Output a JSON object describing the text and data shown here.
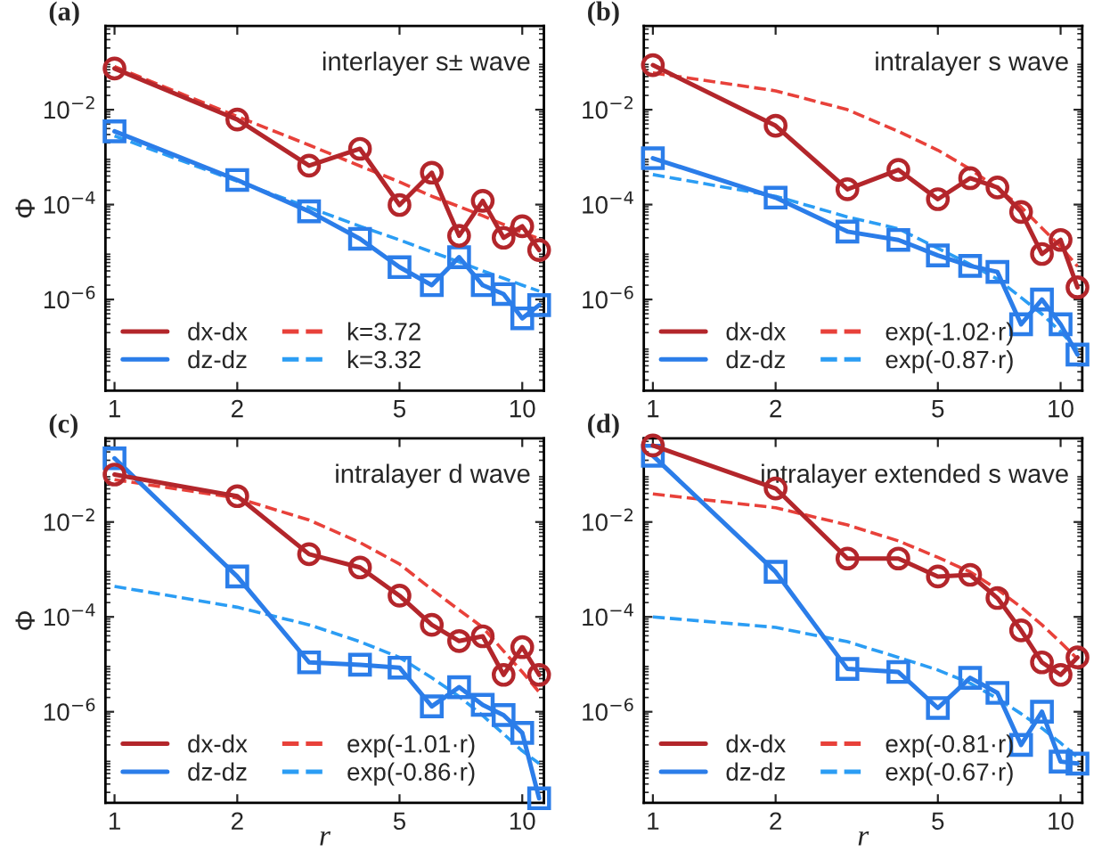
{
  "chart_data": [
    {
      "type": "line",
      "title": "(a)",
      "ylabel": "Φ",
      "annotations": [
        "interlayer s± wave"
      ],
      "log": "xy",
      "xlim": [
        0.95,
        11.3
      ],
      "ylim": [
        1.2e-08,
        0.58
      ],
      "xticks": [
        1,
        2,
        5,
        10
      ],
      "yticks": [
        {
          "value": 0.01,
          "label": "10$^{−2}$"
        },
        {
          "value": 0.0001,
          "label": "10$^{−4}$"
        },
        {
          "value": 1e-06,
          "label": "10$^{−6}$"
        }
      ],
      "grid": false,
      "legend": "bottom left",
      "x": [
        1,
        2,
        3,
        4,
        5,
        6,
        7,
        8,
        9,
        10,
        11
      ],
      "series": [
        {
          "name": "dx-dx",
          "color": "#b3262b",
          "marker": "circle",
          "line_style": "solid",
          "values": [
            0.074,
            0.0062,
            0.00066,
            0.0015,
            9.8e-05,
            0.00047,
            2.2e-05,
            0.00012,
            2e-05,
            3.5e-05,
            1.1e-05
          ]
        },
        {
          "name": "dz-dz",
          "color": "#2b7de9",
          "marker": "square",
          "line_style": "solid",
          "values": [
            0.0035,
            0.00033,
            7.2e-05,
            1.9e-05,
            4.8e-06,
            2e-06,
            7.8e-06,
            2e-06,
            1.3e-06,
            4e-07,
            7.6e-07
          ]
        },
        {
          "name": "k=3.72",
          "color": "#e8413a",
          "marker": "none",
          "line_style": "dashed",
          "values": [
            0.081,
            0.0072,
            0.0018,
            0.00065,
            0.0003,
            0.00015,
            9.1e-05,
            5.8e-05,
            3.8e-05,
            2.6e-05,
            1.9e-05
          ]
        },
        {
          "name": "k=3.32",
          "color": "#2b9df4",
          "marker": "none",
          "line_style": "dashed",
          "values": [
            0.0028,
            0.00031,
            8.7e-05,
            3.5e-05,
            1.8e-05,
            1e-05,
            6.2e-06,
            4e-06,
            2.8e-06,
            2e-06,
            1.5e-06
          ]
        }
      ]
    },
    {
      "type": "line",
      "title": "(b)",
      "annotations": [
        "intralayer s wave"
      ],
      "log": "xy",
      "xlim": [
        0.95,
        11.3
      ],
      "ylim": [
        1.2e-08,
        0.58
      ],
      "xticks": [
        1,
        2,
        5,
        10
      ],
      "yticks": [
        {
          "value": 0.01,
          "label": "10$^{−2}$"
        },
        {
          "value": 0.0001,
          "label": "10$^{−4}$"
        },
        {
          "value": 1e-06,
          "label": "10$^{−6}$"
        }
      ],
      "grid": false,
      "legend": "bottom left",
      "x": [
        1,
        2,
        3,
        4,
        5,
        6,
        7,
        8,
        9,
        10,
        11
      ],
      "series": [
        {
          "name": "dx-dx",
          "color": "#b3262b",
          "marker": "circle",
          "line_style": "solid",
          "values": [
            0.087,
            0.0046,
            0.00021,
            0.00054,
            0.00013,
            0.00036,
            0.00023,
            7e-05,
            9.1e-06,
            1.8e-05,
            1.8e-06
          ]
        },
        {
          "name": "dz-dz",
          "color": "#2b7de9",
          "marker": "square",
          "line_style": "solid",
          "values": [
            0.00095,
            0.00014,
            2.7e-05,
            1.8e-05,
            8.5e-06,
            5.1e-06,
            3.8e-06,
            3e-07,
            1e-06,
            3e-07,
            6.9e-08
          ]
        },
        {
          "name": "exp(-1.02·r)",
          "color": "#e8413a",
          "marker": "none",
          "line_style": "dashed",
          "values": [
            0.06,
            0.025,
            0.01,
            0.0035,
            0.0014,
            0.00056,
            0.00022,
            8.9e-05,
            3.2e-05,
            1.3e-05,
            5e-06
          ]
        },
        {
          "name": "exp(-0.87·r)",
          "color": "#2b9df4",
          "marker": "none",
          "line_style": "dashed",
          "values": [
            0.00043,
            0.00015,
            5.5e-05,
            3.1e-05,
            1.2e-05,
            5.5e-06,
            2.7e-06,
            1.1e-06,
            4.9e-07,
            2.1e-07,
            8.7e-08
          ]
        }
      ]
    },
    {
      "type": "line",
      "title": "(c)",
      "xlabel": "r",
      "ylabel": "Φ",
      "annotations": [
        "intralayer d wave"
      ],
      "log": "xy",
      "xlim": [
        0.95,
        11.3
      ],
      "ylim": [
        1.2e-08,
        0.58
      ],
      "xticks": [
        1,
        2,
        5,
        10
      ],
      "yticks": [
        {
          "value": 0.01,
          "label": "10$^{−2}$"
        },
        {
          "value": 0.0001,
          "label": "10$^{−4}$"
        },
        {
          "value": 1e-06,
          "label": "10$^{−6}$"
        }
      ],
      "grid": false,
      "legend": "bottom left",
      "x": [
        1,
        2,
        3,
        4,
        5,
        6,
        7,
        8,
        9,
        10,
        11
      ],
      "series": [
        {
          "name": "dx-dx",
          "color": "#b3262b",
          "marker": "circle",
          "line_style": "solid",
          "values": [
            0.1,
            0.035,
            0.0021,
            0.0011,
            0.00028,
            6.8e-05,
            3.1e-05,
            3.9e-05,
            6e-06,
            2.3e-05,
            6e-06
          ]
        },
        {
          "name": "dz-dz",
          "color": "#2b7de9",
          "marker": "square",
          "line_style": "solid",
          "values": [
            0.22,
            0.00071,
            1.1e-05,
            9.8e-06,
            8.5e-06,
            1.3e-06,
            3.3e-06,
            1.4e-06,
            8.5e-07,
            3.6e-07,
            1.5e-08
          ]
        },
        {
          "name": "exp(-1.01·r)",
          "color": "#e8413a",
          "marker": "none",
          "line_style": "dashed",
          "values": [
            0.078,
            0.032,
            0.011,
            0.0037,
            0.0013,
            0.00038,
            0.00014,
            6e-05,
            1.9e-05,
            6.9e-06,
            2.6e-06
          ]
        },
        {
          "name": "exp(-0.86·r)",
          "color": "#2b9df4",
          "marker": "none",
          "line_style": "dashed",
          "values": [
            0.00044,
            0.00016,
            6.8e-05,
            3e-05,
            1.4e-05,
            5.2e-06,
            2.1e-06,
            8.3e-07,
            3.4e-07,
            1.5e-07,
            8.1e-08
          ]
        }
      ]
    },
    {
      "type": "line",
      "title": "(d)",
      "xlabel": "r",
      "annotations": [
        "intralayer extended s wave"
      ],
      "log": "xy",
      "xlim": [
        0.95,
        11.3
      ],
      "ylim": [
        1.2e-08,
        0.58
      ],
      "xticks": [
        1,
        2,
        5,
        10
      ],
      "yticks": [
        {
          "value": 0.01,
          "label": "10$^{−2}$"
        },
        {
          "value": 0.0001,
          "label": "10$^{−4}$"
        },
        {
          "value": 1e-06,
          "label": "10$^{−6}$"
        }
      ],
      "grid": false,
      "legend": "bottom left",
      "x": [
        1,
        2,
        3,
        4,
        5,
        6,
        7,
        8,
        9,
        10,
        11
      ],
      "series": [
        {
          "name": "dx-dx",
          "color": "#b3262b",
          "marker": "circle",
          "line_style": "solid",
          "values": [
            0.41,
            0.051,
            0.0017,
            0.0017,
            0.00071,
            0.00077,
            0.00025,
            5.2e-05,
            1.1e-05,
            6e-06,
            1.4e-05
          ]
        },
        {
          "name": "dz-dz",
          "color": "#2b7de9",
          "marker": "square",
          "line_style": "solid",
          "values": [
            0.25,
            0.00089,
            8e-06,
            6.9e-06,
            1.2e-06,
            5.2e-06,
            2.5e-06,
            2e-07,
            1e-06,
            8.9e-08,
            8.1e-08
          ]
        },
        {
          "name": "exp(-0.81·r)",
          "color": "#e8413a",
          "marker": "none",
          "line_style": "dashed",
          "values": [
            0.039,
            0.02,
            0.0087,
            0.004,
            0.0018,
            0.00089,
            0.00038,
            0.00016,
            6.8e-05,
            2.9e-05,
            1.3e-05
          ]
        },
        {
          "name": "exp(-0.67·r)",
          "color": "#2b9df4",
          "marker": "none",
          "line_style": "dashed",
          "values": [
            0.0001,
            6e-05,
            3e-05,
            1.4e-05,
            7.6e-06,
            4e-06,
            1.9e-06,
            9.1e-07,
            4.5e-07,
            2.2e-07,
            1.1e-07
          ]
        }
      ]
    }
  ]
}
